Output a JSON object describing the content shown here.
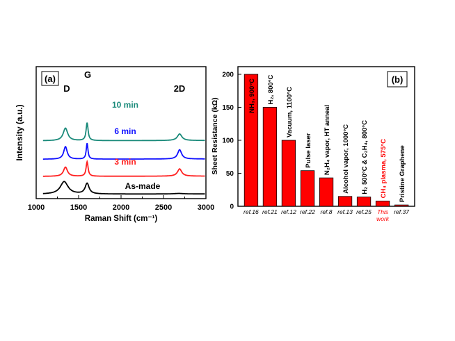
{
  "chart_data": [
    {
      "type": "line",
      "panel_label": "(a)",
      "title": "",
      "xlabel": "Raman Shift (cm⁻¹)",
      "ylabel": "Intensity (a.u.)",
      "xlim": [
        1000,
        3000
      ],
      "xticks": [
        1000,
        1500,
        2000,
        2500,
        3000
      ],
      "xtick_labels": [
        "1000",
        "1500",
        "2000",
        "2500",
        "3000"
      ],
      "peak_labels": [
        "D",
        "G",
        "2D"
      ],
      "series": [
        {
          "name": "As-made",
          "label": "As-made",
          "color": "#000000",
          "offset": 0.0,
          "baseline": 0.02,
          "slope": 1e-05,
          "peaks": [
            [
              1330,
              0.95,
              55
            ],
            [
              1600,
              0.8,
              28
            ],
            [
              2680,
              0.04,
              60
            ]
          ]
        },
        {
          "name": "3 min",
          "label": "3 min",
          "color": "#ff2020",
          "offset": 1.35,
          "baseline": 0.02,
          "slope": 1e-05,
          "peaks": [
            [
              1345,
              0.7,
              28
            ],
            [
              1600,
              1.1,
              14
            ],
            [
              2690,
              0.55,
              30
            ]
          ]
        },
        {
          "name": "6 min",
          "label": "6 min",
          "color": "#1010ff",
          "offset": 2.65,
          "baseline": 0.02,
          "slope": 1e-05,
          "peaks": [
            [
              1345,
              0.95,
              25
            ],
            [
              1600,
              1.2,
              12
            ],
            [
              2690,
              0.7,
              28
            ]
          ]
        },
        {
          "name": "10 min",
          "label": "10 min",
          "color": "#1a8a7a",
          "offset": 4.05,
          "baseline": 0.02,
          "slope": 1e-05,
          "peaks": [
            [
              1345,
              0.95,
              32
            ],
            [
              1600,
              1.35,
              14
            ],
            [
              2690,
              0.5,
              32
            ]
          ]
        }
      ]
    },
    {
      "type": "bar",
      "panel_label": "(b)",
      "title": "",
      "xlabel": "",
      "ylabel": "Sheet Resistance (kΩ)",
      "ylim": [
        0,
        200
      ],
      "yticks": [
        0,
        50,
        100,
        150,
        200
      ],
      "categories": [
        "ref.16",
        "ref.21",
        "ref.12",
        "ref.22",
        "ref.8",
        "ref.13",
        "ref.25",
        "This work",
        "ref.37"
      ],
      "category_lines": [
        [
          "ref.16"
        ],
        [
          "ref.21"
        ],
        [
          "ref.12"
        ],
        [
          "ref.22"
        ],
        [
          "ref.8"
        ],
        [
          "ref.13"
        ],
        [
          "ref.25"
        ],
        [
          "This",
          "work"
        ],
        [
          "ref.37"
        ]
      ],
      "values": [
        200,
        150,
        100,
        54,
        43,
        15,
        14,
        8,
        2
      ],
      "bar_color": "#ff0000",
      "annotations": [
        {
          "text": "NH₃, 900°C",
          "color": "#000000"
        },
        {
          "text": "H₂, 800°C",
          "color": "#000000"
        },
        {
          "text": "Vacuum, 1100°C",
          "color": "#000000"
        },
        {
          "text": "Pulse laser",
          "color": "#000000"
        },
        {
          "text": "N₂H₄ vapor, HT anneal",
          "color": "#000000"
        },
        {
          "text": "Alcohol vapor, 1000°C",
          "color": "#000000"
        },
        {
          "text": "H₂ 500°C & C₂H₄, 800°C",
          "color": "#000000"
        },
        {
          "text": "CH₄ plasma, 575°C",
          "color": "#ff0000"
        },
        {
          "text": "Pristine Graphene",
          "color": "#000000"
        }
      ],
      "highlight_index": 7,
      "highlight_color": "#ff0000"
    }
  ]
}
